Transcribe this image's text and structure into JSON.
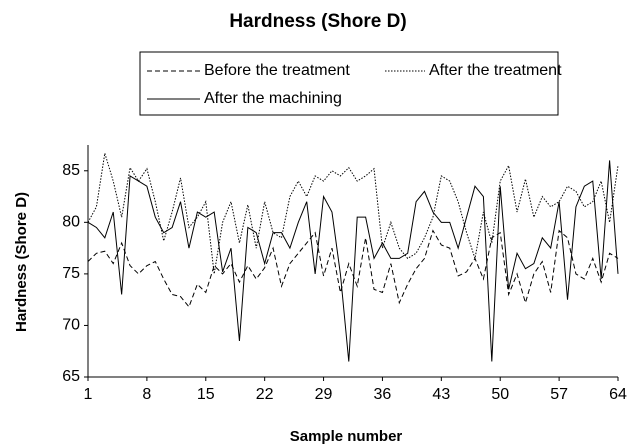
{
  "chart_data": {
    "type": "line",
    "title": "Hardness (Shore D)",
    "x_label": "Sample number",
    "y_label": "Hardness (Shore D)",
    "x": [
      1,
      2,
      3,
      4,
      5,
      6,
      7,
      8,
      9,
      10,
      11,
      12,
      13,
      14,
      15,
      16,
      17,
      18,
      19,
      20,
      21,
      22,
      23,
      24,
      25,
      26,
      27,
      28,
      29,
      30,
      31,
      32,
      33,
      34,
      35,
      36,
      37,
      38,
      39,
      40,
      41,
      42,
      43,
      44,
      45,
      46,
      47,
      48,
      49,
      50,
      51,
      52,
      53,
      54,
      55,
      56,
      57,
      58,
      59,
      60,
      61,
      62,
      63,
      64
    ],
    "xlim": [
      1,
      64
    ],
    "xticks": [
      1,
      8,
      15,
      22,
      29,
      36,
      43,
      50,
      57,
      64
    ],
    "ylim": [
      65,
      87.5
    ],
    "yticks": [
      65,
      70,
      75,
      80,
      85
    ],
    "grid": false,
    "series": [
      {
        "name": "Before the treatment",
        "color": "#000000",
        "style": "dashed",
        "values": [
          76.2,
          77,
          77.2,
          76,
          78,
          75.8,
          75,
          75.8,
          76.2,
          74.5,
          73,
          72.8,
          71.8,
          74,
          73.2,
          75.8,
          75,
          76,
          74.2,
          75.8,
          74.5,
          75.6,
          77.5,
          73.8,
          76,
          77,
          78,
          79,
          74.8,
          77.5,
          73.2,
          76,
          73.8,
          78.5,
          73.5,
          73.2,
          76,
          72.2,
          74,
          75.5,
          76.5,
          79.2,
          77.8,
          77.5,
          74.8,
          75.2,
          76.5,
          74.5,
          78.5,
          79,
          73,
          75,
          72.2,
          75,
          76.2,
          73.2,
          79.2,
          78.5,
          75,
          74.5,
          76.5,
          74.2,
          77,
          76.5
        ]
      },
      {
        "name": "After the treatment",
        "color": "#000000",
        "style": "dotted",
        "values": [
          80,
          81.5,
          86.7,
          84,
          80.5,
          85.3,
          84,
          85.2,
          82,
          78.2,
          81,
          84.3,
          79.5,
          80.5,
          82,
          75,
          80,
          82,
          78,
          81.7,
          77.5,
          82,
          79,
          78.5,
          82.5,
          84,
          82.5,
          84.5,
          84,
          85,
          84.5,
          85.3,
          84,
          84.5,
          85.2,
          77.5,
          80,
          77.5,
          76.5,
          77,
          78.5,
          80.5,
          84.5,
          84,
          82,
          79,
          76.5,
          81,
          78,
          84,
          85.5,
          81,
          84.2,
          80.5,
          82.5,
          81.5,
          82,
          83.5,
          83,
          81.5,
          82,
          84,
          80,
          85.5
        ]
      },
      {
        "name": "After the machining",
        "color": "#000000",
        "style": "solid",
        "values": [
          80,
          79.5,
          78.5,
          81,
          73,
          84.5,
          84,
          83.5,
          80.5,
          79,
          79.5,
          82,
          77.5,
          81,
          80.5,
          81,
          75.2,
          77.5,
          68.5,
          79.5,
          79,
          76,
          79,
          79,
          77.5,
          80,
          82,
          75,
          82.5,
          81,
          75,
          66.5,
          80.5,
          80.5,
          76.5,
          78,
          76.5,
          76.5,
          77,
          82,
          83,
          81,
          80,
          80,
          77.5,
          80.5,
          83.5,
          82.5,
          66.5,
          83.5,
          73.5,
          77,
          75.5,
          76,
          78.5,
          77.5,
          82,
          72.5,
          81.5,
          83.5,
          84,
          74.5,
          86,
          75
        ]
      }
    ]
  }
}
